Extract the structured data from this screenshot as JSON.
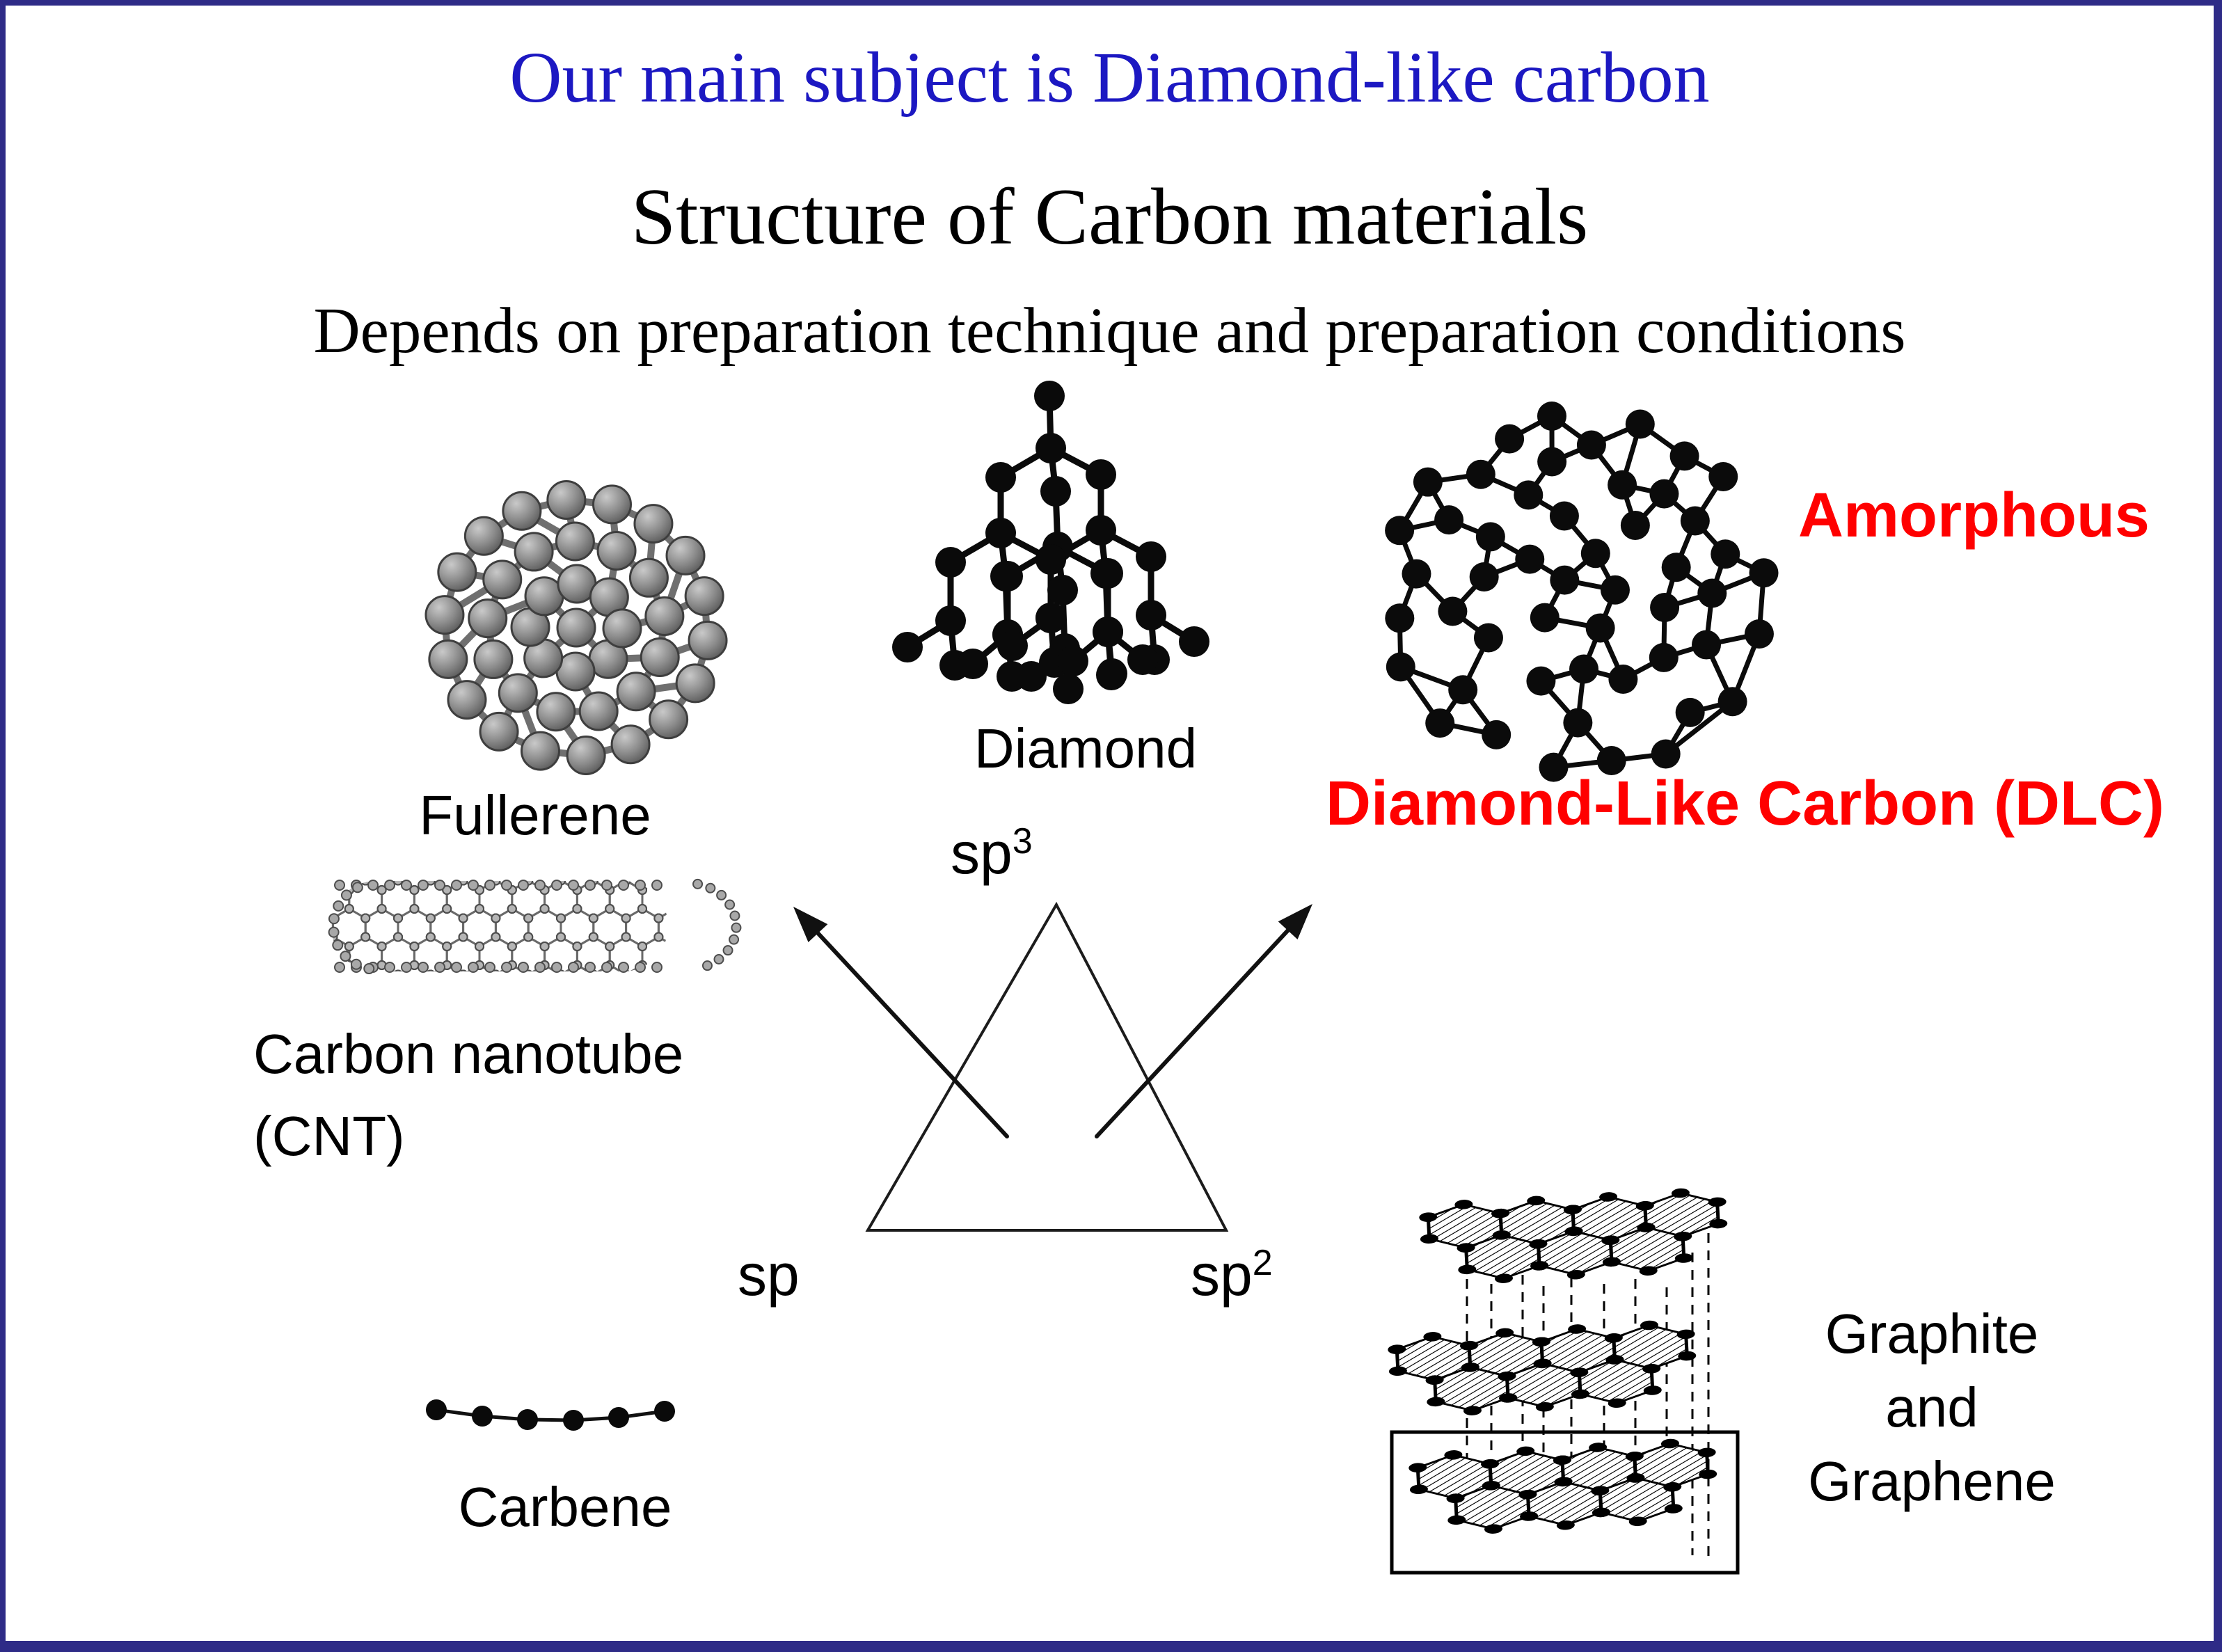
{
  "slide": {
    "background": "#ffffff",
    "border_color": "#2e2b87"
  },
  "header": {
    "title": "Our main subject is Diamond-like carbon",
    "title_color": "#1c18c2",
    "heading": "Structure of Carbon materials",
    "subheading": "Depends on preparation technique and preparation conditions"
  },
  "labels": {
    "fullerene": "Fullerene",
    "diamond": "Diamond",
    "sp3_base": "sp",
    "sp3_sup": "3",
    "sp_base": "sp",
    "sp2_base": "sp",
    "sp2_sup": "2",
    "cnt_line1": "Carbon nanotube",
    "cnt_line2": "(CNT)",
    "carbene": "Carbene",
    "amorphous": "Amorphous",
    "dlc": "Diamond-Like Carbon (DLC)",
    "graphite_lines": [
      "Graphite",
      "and",
      "Graphene"
    ],
    "red_accent": "#ff0000",
    "text_color": "#000000"
  },
  "figures": {
    "fullerene": "fullerene-molecule",
    "diamond": "diamond-lattice",
    "amorphous": "amorphous-carbon-network",
    "nanotube": "carbon-nanotube",
    "carbene": "carbene-chain",
    "graphite": "graphite-and-graphene-layers",
    "triangle": "sp-hybridization-triangle"
  }
}
